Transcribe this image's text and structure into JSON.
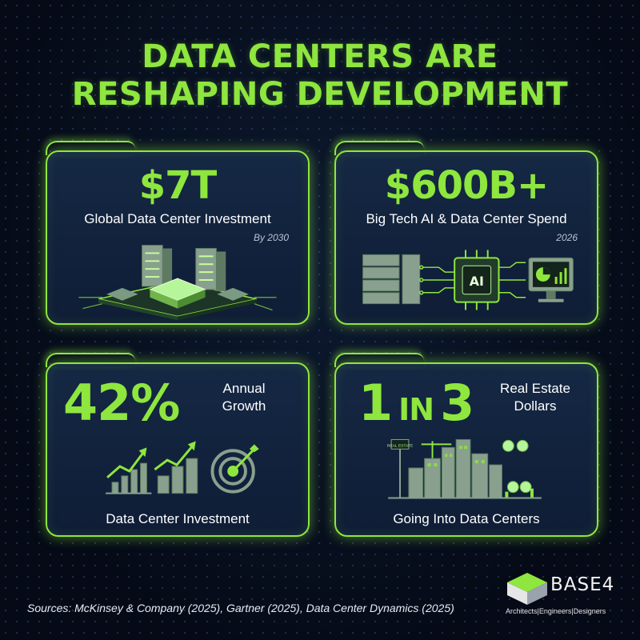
{
  "title": {
    "line1": "DATA CENTERS ARE",
    "line2": "RESHAPING DEVELOPMENT"
  },
  "colors": {
    "accent": "#8ee63e",
    "background": "#060c1a",
    "card": "#132540",
    "text": "#ffffff"
  },
  "cards": [
    {
      "value": "$7T",
      "label": "Global Data Center Investment",
      "note": "By 2030",
      "illustration": "server-rack-icon"
    },
    {
      "value": "$600B+",
      "label": "Big Tech AI & Data Center Spend",
      "note": "2026",
      "illustration": "ai-chip-icon",
      "chip_text": "AI"
    },
    {
      "value": "42%",
      "side_label": "Annual Growth",
      "label": "Data Center Investment",
      "illustration": "growth-chart-icon"
    },
    {
      "value_a": "1",
      "value_b": "IN",
      "value_c": "3",
      "side_label": "Real Estate Dollars",
      "label": "Going Into Data Centers",
      "illustration": "city-skyline-icon",
      "sign_text": "REAL ESTATE"
    }
  ],
  "sources": "Sources: McKinsey & Company (2025), Gartner (2025), Data Center Dynamics (2025)",
  "logo": {
    "name": "BASE4",
    "tagline": "Architects|Engineers|Designers"
  }
}
